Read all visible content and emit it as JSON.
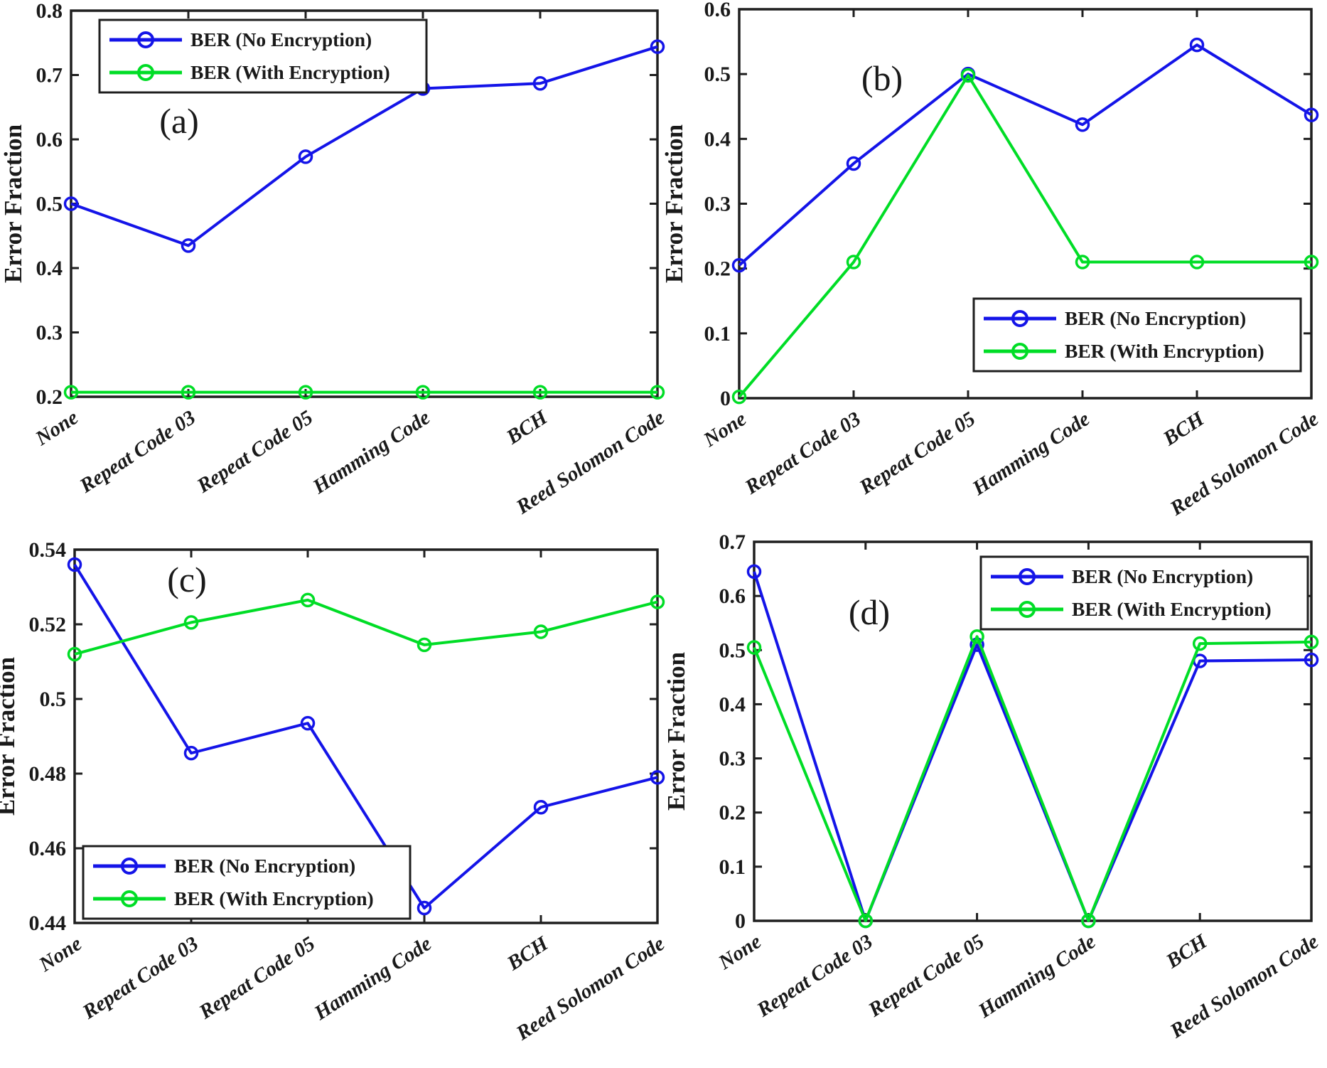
{
  "figure": {
    "background": "#ffffff",
    "axis_color": "#1f1f1f",
    "text_color": "#1a1a1a",
    "ylabel": "Error Fraction",
    "categories": [
      "None",
      "Repeat Code 03",
      "Repeat Code 05",
      "Hamming Code",
      "BCH",
      "Reed Solomon Code"
    ],
    "legend_labels": [
      "BER (No Encryption)",
      "BER (With Encryption)"
    ],
    "series_colors": {
      "no_encryption": "#1414e8",
      "with_encryption": "#00dd26"
    }
  },
  "chart_data": [
    {
      "id": "a",
      "type": "line",
      "panel_label": "(a)",
      "ylabel": "Error Fraction",
      "categories": [
        "None",
        "Repeat Code 03",
        "Repeat Code 05",
        "Hamming Code",
        "BCH",
        "Reed Solomon Code"
      ],
      "ylim": [
        0.2,
        0.8
      ],
      "yticks": [
        0.2,
        0.3,
        0.4,
        0.5,
        0.6,
        0.7,
        0.8
      ],
      "ytick_labels": [
        "0.2",
        "0.3",
        "0.4",
        "0.5",
        "0.6",
        "0.7",
        "0.8"
      ],
      "grid": false,
      "legend_position": "top-left",
      "series": [
        {
          "name": "BER (No Encryption)",
          "color": "#1414e8",
          "marker": "circle",
          "values": [
            0.5,
            0.435,
            0.573,
            0.679,
            0.687,
            0.744
          ]
        },
        {
          "name": "BER (With Encryption)",
          "color": "#00dd26",
          "marker": "circle",
          "values": [
            0.207,
            0.207,
            0.207,
            0.207,
            0.207,
            0.207
          ]
        }
      ]
    },
    {
      "id": "b",
      "type": "line",
      "panel_label": "(b)",
      "ylabel": "Error Fraction",
      "categories": [
        "None",
        "Repeat Code 03",
        "Repeat Code 05",
        "Hamming Code",
        "BCH",
        "Reed Solomon Code"
      ],
      "ylim": [
        0,
        0.6
      ],
      "yticks": [
        0,
        0.1,
        0.2,
        0.3,
        0.4,
        0.5,
        0.6
      ],
      "ytick_labels": [
        "0",
        "0.1",
        "0.2",
        "0.3",
        "0.4",
        "0.5",
        "0.6"
      ],
      "grid": false,
      "legend_position": "bottom-right",
      "series": [
        {
          "name": "BER (No Encryption)",
          "color": "#1414e8",
          "marker": "circle",
          "values": [
            0.205,
            0.362,
            0.5,
            0.422,
            0.545,
            0.437
          ]
        },
        {
          "name": "BER (With Encryption)",
          "color": "#00dd26",
          "marker": "circle",
          "values": [
            0.002,
            0.21,
            0.498,
            0.21,
            0.21,
            0.21
          ]
        }
      ]
    },
    {
      "id": "c",
      "type": "line",
      "panel_label": "(c)",
      "ylabel": "Error Fraction",
      "categories": [
        "None",
        "Repeat Code 03",
        "Repeat Code 05",
        "Hamming Code",
        "BCH",
        "Reed Solomon Code"
      ],
      "ylim": [
        0.44,
        0.54
      ],
      "yticks": [
        0.44,
        0.46,
        0.48,
        0.5,
        0.52,
        0.54
      ],
      "ytick_labels": [
        "0.44",
        "0.46",
        "0.48",
        "0.5",
        "0.52",
        "0.54"
      ],
      "grid": false,
      "legend_position": "bottom-left",
      "series": [
        {
          "name": "BER (No Encryption)",
          "color": "#1414e8",
          "marker": "circle",
          "values": [
            0.536,
            0.4855,
            0.4935,
            0.444,
            0.471,
            0.479
          ]
        },
        {
          "name": "BER (With Encryption)",
          "color": "#00dd26",
          "marker": "circle",
          "values": [
            0.512,
            0.5205,
            0.5265,
            0.5145,
            0.518,
            0.526
          ]
        }
      ]
    },
    {
      "id": "d",
      "type": "line",
      "panel_label": "(d)",
      "ylabel": "Error Fraction",
      "categories": [
        "None",
        "Repeat Code 03",
        "Repeat Code 05",
        "Hamming Code",
        "BCH",
        "Reed Solomon Code"
      ],
      "ylim": [
        0,
        0.7
      ],
      "yticks": [
        0,
        0.1,
        0.2,
        0.3,
        0.4,
        0.5,
        0.6,
        0.7
      ],
      "ytick_labels": [
        "0",
        "0.1",
        "0.2",
        "0.3",
        "0.4",
        "0.5",
        "0.6",
        "0.7"
      ],
      "grid": false,
      "legend_position": "top-right",
      "series": [
        {
          "name": "BER (No Encryption)",
          "color": "#1414e8",
          "marker": "circle",
          "values": [
            0.645,
            0.0,
            0.51,
            0.0,
            0.48,
            0.482
          ]
        },
        {
          "name": "BER (With Encryption)",
          "color": "#00dd26",
          "marker": "circle",
          "values": [
            0.505,
            0.0,
            0.525,
            0.0,
            0.512,
            0.515
          ]
        }
      ]
    }
  ]
}
